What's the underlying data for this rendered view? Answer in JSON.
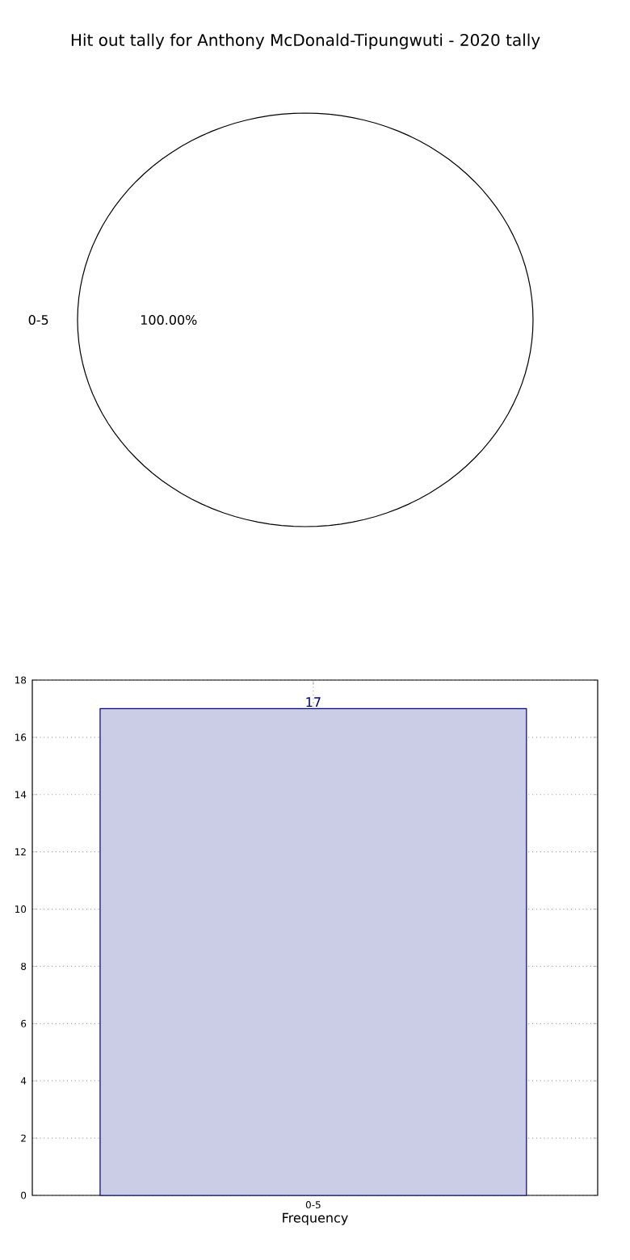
{
  "chart_data": [
    {
      "type": "pie",
      "title": "Hit out tally for Anthony McDonald-Tipungwuti - 2020 tally",
      "categories": [
        "0-5"
      ],
      "values": [
        100
      ],
      "colors": [
        "#ffffff"
      ],
      "value_labels": [
        "100.00%"
      ]
    },
    {
      "type": "bar",
      "categories": [
        "0-5"
      ],
      "values": [
        17
      ],
      "color": "#cbcce5",
      "xlabel": "Frequency",
      "ylim": [
        0,
        18
      ],
      "yticks": [
        0,
        2,
        4,
        6,
        8,
        10,
        12,
        14,
        16,
        18
      ],
      "grid": true,
      "data_labels": true
    }
  ]
}
